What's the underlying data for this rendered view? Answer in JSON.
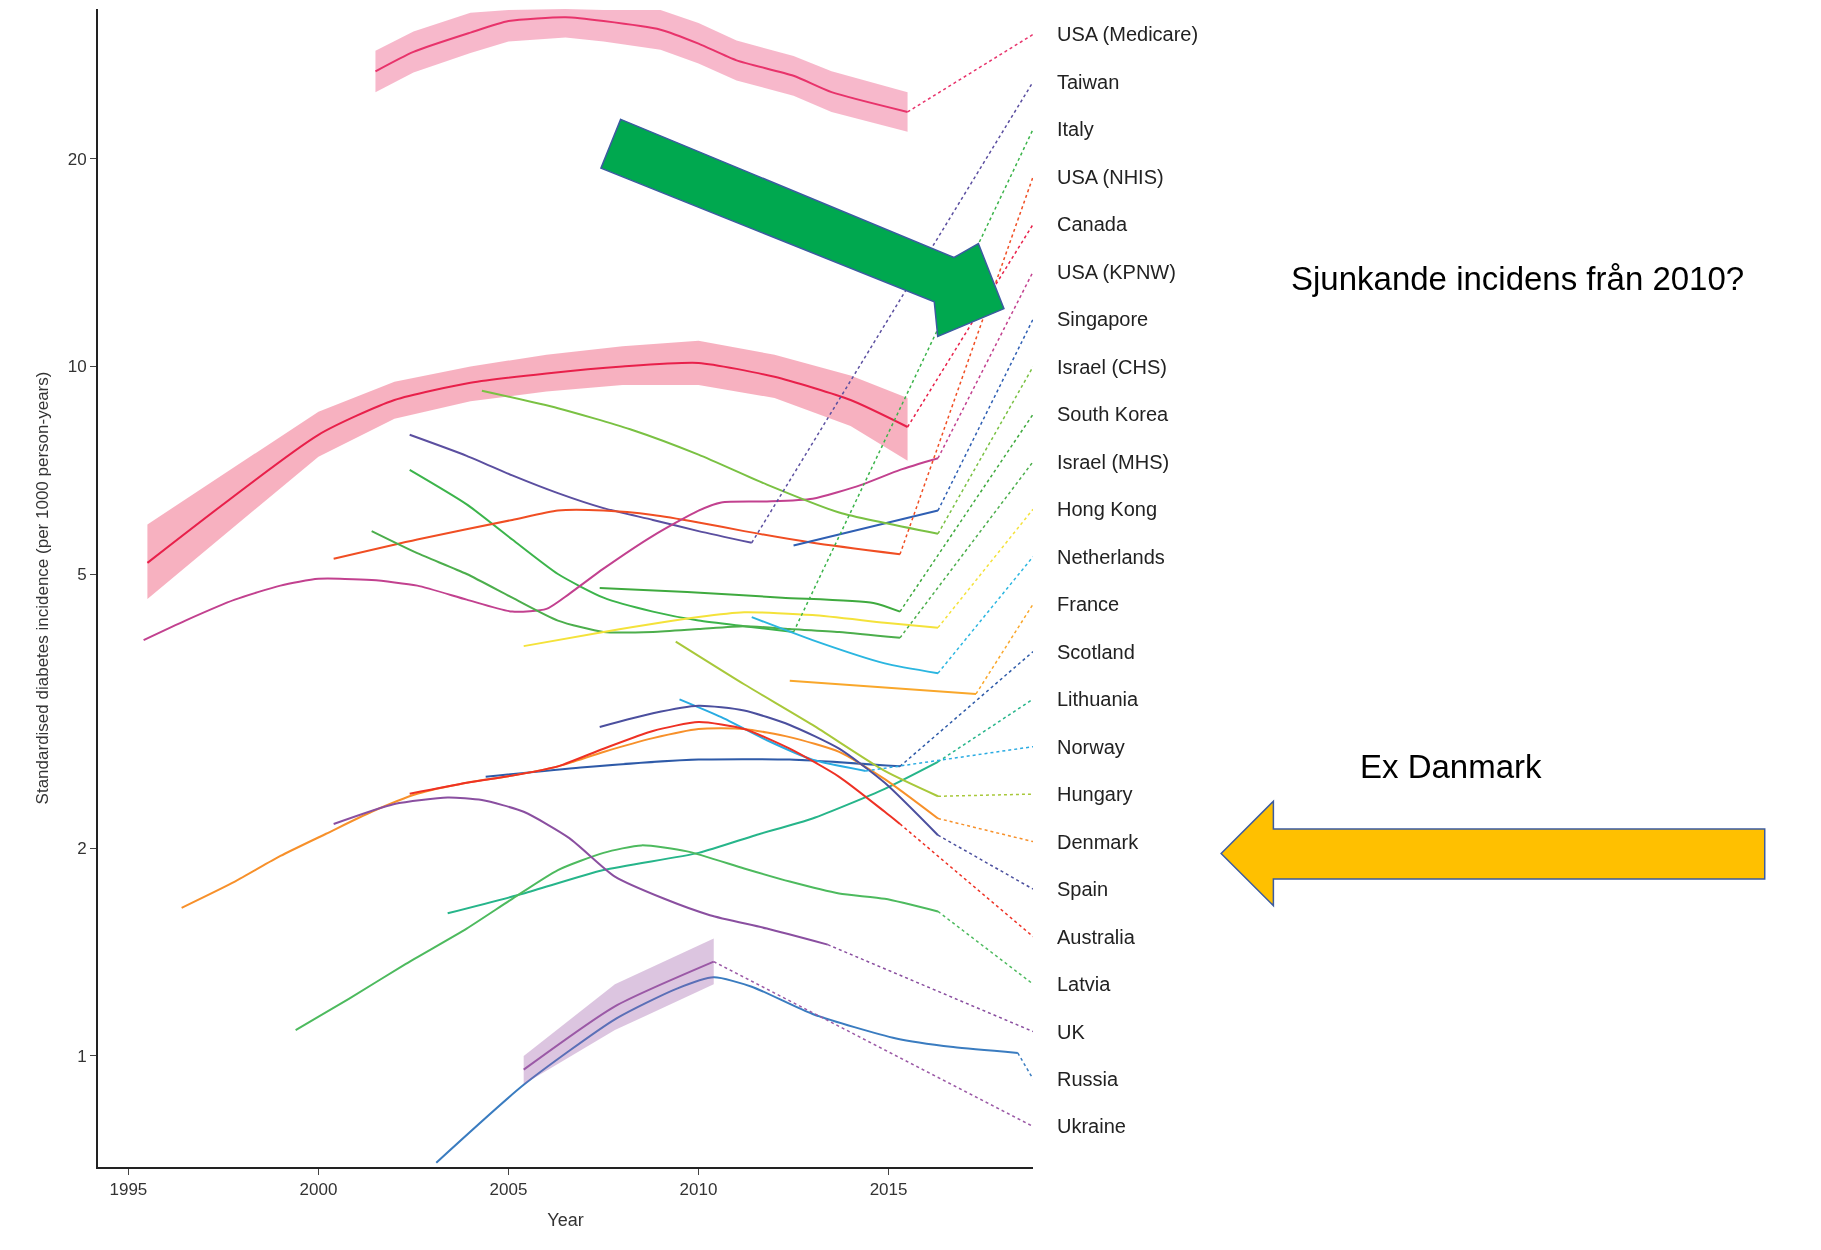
{
  "chart_data": {
    "type": "line",
    "xlabel": "Year",
    "ylabel": "Standardised diabetes incidence (per 1000 person-years)",
    "annotations": [
      "Sjunkande incidens från 2010?",
      "Ex Danmark"
    ],
    "xlim": [
      1994.2,
      2018.8
    ],
    "ylim": [
      0.69,
      33
    ],
    "xticks": [
      1995,
      2000,
      2005,
      2010,
      2015
    ],
    "yticks": [
      1,
      2,
      5,
      10,
      20
    ],
    "log": true,
    "legend": "right",
    "marker": "none",
    "line_style": "solid",
    "series": [
      {
        "name": "USA (Medicare)",
        "color": "#e8336b",
        "x": [
          2001.5,
          2002.5,
          2004,
          2005,
          2006.5,
          2007.5,
          2009,
          2010,
          2011,
          2012.5,
          2013.5,
          2015.5
        ],
        "values": [
          26.8,
          28.6,
          30.5,
          31.7,
          32.1,
          31.7,
          30.8,
          29.4,
          27.8,
          26.4,
          25.0,
          23.4
        ],
        "lower": [
          25.0,
          26.7,
          28.5,
          29.6,
          30.0,
          29.6,
          28.8,
          27.5,
          26.0,
          24.7,
          23.4,
          21.9
        ],
        "upper": [
          28.7,
          30.6,
          32.6,
          32.9,
          33.0,
          32.9,
          32.9,
          31.5,
          29.7,
          28.2,
          26.8,
          25.0
        ]
      },
      {
        "name": "Taiwan",
        "color": "#5b4fa0",
        "x": [
          2002.4,
          2003.9,
          2005.1,
          2006.3,
          2007.5,
          2008.8,
          2010,
          2011.4
        ],
        "values": [
          7.96,
          7.42,
          6.95,
          6.55,
          6.23,
          5.99,
          5.77,
          5.55
        ]
      },
      {
        "name": "Italy",
        "color": "#3cb44b",
        "x": [
          2002.4,
          2003.9,
          2005.1,
          2006.3,
          2007.5,
          2008.8,
          2010,
          2011.2,
          2012.5
        ],
        "values": [
          7.08,
          6.31,
          5.61,
          5.0,
          4.62,
          4.41,
          4.28,
          4.2,
          4.12
        ]
      },
      {
        "name": "USA (NHIS)",
        "color": "#f04e23",
        "x": [
          2000.4,
          2002.6,
          2005.1,
          2006.3,
          2007.5,
          2008.8,
          2010,
          2011.2,
          2013,
          2015.3
        ],
        "values": [
          5.26,
          5.61,
          5.99,
          6.18,
          6.18,
          6.09,
          5.94,
          5.77,
          5.55,
          5.34
        ]
      },
      {
        "name": "Canada",
        "color": "#e8204a",
        "x": [
          1995.5,
          2000,
          2002,
          2004,
          2006,
          2008,
          2010,
          2012,
          2014,
          2015.5
        ],
        "values": [
          5.19,
          7.96,
          8.94,
          9.47,
          9.77,
          10.0,
          10.12,
          9.66,
          8.94,
          8.17
        ],
        "lower": [
          4.6,
          7.4,
          8.4,
          8.9,
          9.2,
          9.4,
          9.4,
          9.0,
          8.2,
          7.3
        ],
        "upper": [
          5.9,
          8.6,
          9.5,
          10.0,
          10.4,
          10.7,
          10.9,
          10.4,
          9.7,
          9.0
        ]
      },
      {
        "name": "USA (KPNW)",
        "color": "#c2418f",
        "x": [
          1995.4,
          1996.5,
          1997.8,
          1999,
          2000,
          2001.4,
          2002.6,
          2003.9,
          2005.1,
          2006,
          2006.6,
          2007.5,
          2008.8,
          2010,
          2010.6,
          2011.8,
          2013,
          2014.3,
          2015.3,
          2016.3
        ],
        "values": [
          4.01,
          4.28,
          4.59,
          4.81,
          4.92,
          4.9,
          4.81,
          4.59,
          4.41,
          4.45,
          4.68,
          5.09,
          5.68,
          6.18,
          6.35,
          6.37,
          6.43,
          6.74,
          7.08,
          7.36
        ]
      },
      {
        "name": "Singapore",
        "color": "#2f5fb3",
        "x": [
          2012.5,
          2014.4,
          2016.3
        ],
        "values": [
          5.5,
          5.83,
          6.18
        ]
      },
      {
        "name": "Israel (CHS)",
        "color": "#7ac143",
        "x": [
          2004.3,
          2006.3,
          2008.2,
          2010,
          2011.8,
          2013.7,
          2016.3
        ],
        "values": [
          9.22,
          8.7,
          8.11,
          7.45,
          6.74,
          6.14,
          5.72
        ]
      },
      {
        "name": "South Korea",
        "color": "#3faa3f",
        "x": [
          2007.4,
          2009.7,
          2012.2,
          2014.6,
          2015.3
        ],
        "values": [
          4.77,
          4.71,
          4.62,
          4.54,
          4.41
        ]
      },
      {
        "name": "Israel (MHS)",
        "color": "#4cae4c",
        "x": [
          2001.4,
          2002.6,
          2003.9,
          2005.1,
          2006.3,
          2007.5,
          2008.8,
          2010,
          2011.2,
          2012.4,
          2013.7,
          2015.3
        ],
        "values": [
          5.77,
          5.36,
          5.0,
          4.62,
          4.28,
          4.12,
          4.12,
          4.16,
          4.2,
          4.16,
          4.12,
          4.04
        ]
      },
      {
        "name": "Hong Kong",
        "color": "#f4e23a",
        "x": [
          2005.4,
          2007.5,
          2010,
          2011.2,
          2013,
          2014.9,
          2016.3
        ],
        "values": [
          3.93,
          4.12,
          4.33,
          4.4,
          4.36,
          4.25,
          4.18
        ]
      },
      {
        "name": "Netherlands",
        "color": "#2bb6e0",
        "x": [
          2011.4,
          2013,
          2014.9,
          2016.3
        ],
        "values": [
          4.33,
          4.01,
          3.71,
          3.59
        ]
      },
      {
        "name": "France",
        "color": "#f9a72b",
        "x": [
          2012.4,
          2017.3
        ],
        "values": [
          3.5,
          3.35
        ]
      },
      {
        "name": "Scotland",
        "color": "#2e5aa8",
        "x": [
          2004.4,
          2006.9,
          2010,
          2012.4,
          2015.3
        ],
        "values": [
          2.54,
          2.62,
          2.69,
          2.69,
          2.63
        ]
      },
      {
        "name": "Lithuania",
        "color": "#26b58a",
        "x": [
          2003.4,
          2005.4,
          2007.5,
          2010,
          2011.5,
          2013,
          2014.9,
          2016.3
        ],
        "values": [
          1.61,
          1.72,
          1.86,
          1.97,
          2.09,
          2.21,
          2.44,
          2.67
        ]
      },
      {
        "name": "Norway",
        "color": "#29abe2",
        "x": [
          2009.5,
          2010.6,
          2011.8,
          2013,
          2014.4
        ],
        "values": [
          3.29,
          3.1,
          2.87,
          2.69,
          2.59
        ]
      },
      {
        "name": "Hungary",
        "color": "#a8c83a",
        "x": [
          2009.4,
          2011.2,
          2013,
          2014.9,
          2016.3
        ],
        "values": [
          3.99,
          3.46,
          3.02,
          2.59,
          2.38
        ]
      },
      {
        "name": "Denmark",
        "color": "#f7902a",
        "x": [
          1996.4,
          1997.8,
          1999,
          2000.2,
          2001.4,
          2002.6,
          2003.9,
          2005.1,
          2006.3,
          2007.5,
          2008.8,
          2010,
          2011.2,
          2012.4,
          2013.7,
          2014.9,
          2016.3
        ],
        "values": [
          1.64,
          1.79,
          1.95,
          2.1,
          2.26,
          2.4,
          2.49,
          2.55,
          2.63,
          2.76,
          2.89,
          2.98,
          2.98,
          2.9,
          2.76,
          2.52,
          2.21
        ]
      },
      {
        "name": "Spain",
        "color": "#4b4f9e",
        "x": [
          2007.4,
          2008.8,
          2010,
          2011.2,
          2012.4,
          2013.7,
          2014.9,
          2016.3
        ],
        "values": [
          3.0,
          3.14,
          3.22,
          3.17,
          3.02,
          2.79,
          2.49,
          2.09
        ]
      },
      {
        "name": "Australia",
        "color": "#ee3124",
        "x": [
          2002.4,
          2003.9,
          2005.1,
          2006.3,
          2007.5,
          2008.8,
          2010,
          2011.2,
          2012.4,
          2013.7,
          2014.9,
          2015.3
        ],
        "values": [
          2.4,
          2.49,
          2.55,
          2.63,
          2.79,
          2.96,
          3.05,
          2.98,
          2.79,
          2.54,
          2.26,
          2.17
        ]
      },
      {
        "name": "Latvia",
        "color": "#4dba5e",
        "x": [
          1999.4,
          2000.8,
          2002.3,
          2003.9,
          2005.1,
          2006.3,
          2007.5,
          2008.5,
          2009.7,
          2011.2,
          2012.4,
          2013.7,
          2014.9,
          2016.3
        ],
        "values": [
          1.09,
          1.21,
          1.36,
          1.53,
          1.69,
          1.86,
          1.97,
          2.02,
          1.98,
          1.87,
          1.79,
          1.72,
          1.69,
          1.62
        ]
      },
      {
        "name": "UK",
        "color": "#8a4fa0",
        "x": [
          2000.4,
          2002,
          2003.4,
          2004.3,
          2005.4,
          2006.6,
          2007.8,
          2009.1,
          2010.3,
          2011.8,
          2013.4
        ],
        "values": [
          2.17,
          2.32,
          2.37,
          2.35,
          2.26,
          2.07,
          1.82,
          1.69,
          1.6,
          1.53,
          1.45
        ]
      },
      {
        "name": "Russia",
        "color": "#3a7cc0",
        "x": [
          2003.1,
          2005.4,
          2007.8,
          2009.4,
          2010.4,
          2011.4,
          2013,
          2015.2,
          2016.7,
          2018.4
        ],
        "values": [
          0.7,
          0.908,
          1.13,
          1.25,
          1.3,
          1.26,
          1.15,
          1.06,
          1.03,
          1.01
        ]
      },
      {
        "name": "Ukraine",
        "color": "#9b59a6",
        "x": [
          2005.4,
          2007.8,
          2010.4
        ],
        "values": [
          0.955,
          1.18,
          1.37
        ],
        "lower": [
          0.91,
          1.09,
          1.27
        ],
        "upper": [
          1.0,
          1.27,
          1.48
        ]
      }
    ]
  }
}
